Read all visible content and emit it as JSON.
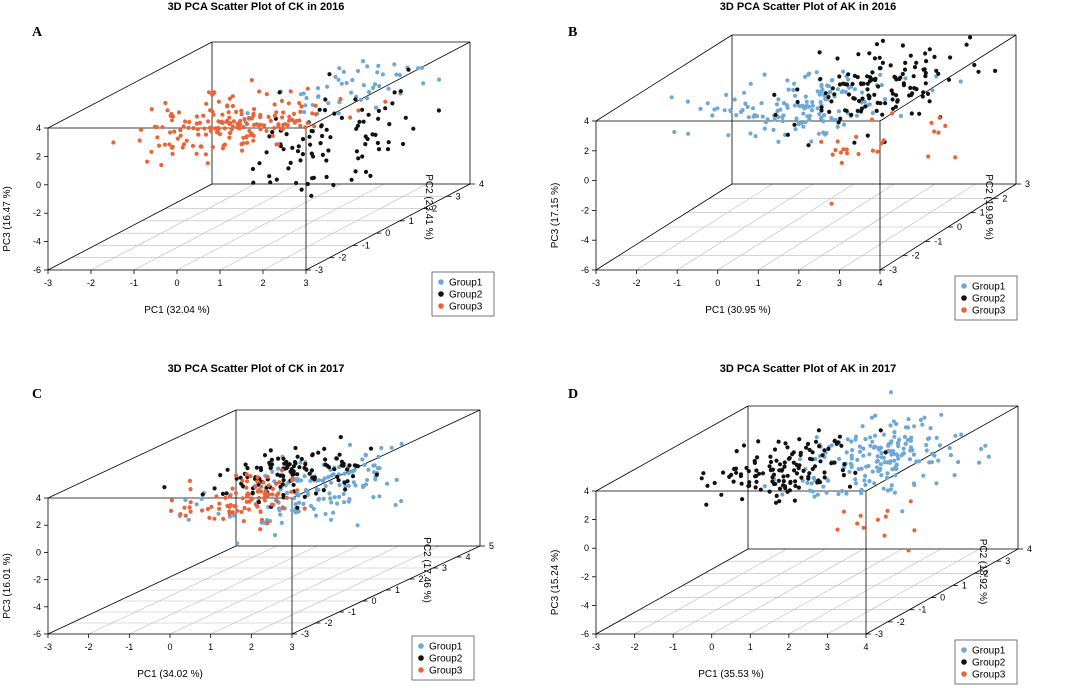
{
  "colors": {
    "Group1": "#6fa8d6",
    "Group2": "#111111",
    "Group3": "#e8653a",
    "box": "#000000",
    "grid": "#bbbbbb"
  },
  "chart_data": [
    {
      "panel_label": "A",
      "type": "scatter",
      "title": "3D PCA Scatter Plot of CK in 2016",
      "xlabel": "PC1 (32.04 %)",
      "ylabel": "PC2 (23.41 %)",
      "zlabel": "PC3 (16.47 %)",
      "x_ticks": [
        "-3",
        "-2",
        "-1",
        "0",
        "1",
        "2",
        "3"
      ],
      "y_ticks": [
        "-3",
        "-2",
        "-1",
        "0",
        "1",
        "2",
        "3",
        "4"
      ],
      "z_ticks": [
        "-6",
        "-4",
        "-2",
        "0",
        "2",
        "4"
      ],
      "xlim": [
        -3,
        3
      ],
      "ylim": [
        -3,
        4
      ],
      "zlim": [
        -6,
        4
      ],
      "legend": [
        "Group1",
        "Group2",
        "Group3"
      ],
      "legend_position": "bottom-right",
      "series": [
        {
          "name": "Group1",
          "center": [
            1.5,
            1.5,
            2.8
          ],
          "spread": [
            0.7,
            1.0,
            0.7
          ],
          "n": 50
        },
        {
          "name": "Group2",
          "center": [
            1.8,
            0.0,
            0.8
          ],
          "spread": [
            0.7,
            1.2,
            1.6
          ],
          "n": 90
        },
        {
          "name": "Group3",
          "center": [
            -0.3,
            0.2,
            1.5
          ],
          "spread": [
            0.9,
            0.9,
            0.8
          ],
          "n": 180
        }
      ]
    },
    {
      "panel_label": "B",
      "type": "scatter",
      "title": "3D PCA Scatter Plot of AK in 2016",
      "xlabel": "PC1 (30.95 %)",
      "ylabel": "PC2 (19.96 %)",
      "zlabel": "PC3 (17.15 %)",
      "x_ticks": [
        "-3",
        "-2",
        "-1",
        "0",
        "1",
        "2",
        "3",
        "4"
      ],
      "y_ticks": [
        "-3",
        "-2",
        "-1",
        "0",
        "1",
        "2",
        "3"
      ],
      "z_ticks": [
        "-6",
        "-4",
        "-2",
        "0",
        "2",
        "4"
      ],
      "xlim": [
        -3,
        4
      ],
      "ylim": [
        -3,
        3
      ],
      "zlim": [
        -6,
        4
      ],
      "legend": [
        "Group1",
        "Group2",
        "Group3"
      ],
      "legend_position": "bottom-right",
      "series": [
        {
          "name": "Group1",
          "center": [
            0.3,
            0.3,
            2.0
          ],
          "spread": [
            1.0,
            1.0,
            0.8
          ],
          "n": 150
        },
        {
          "name": "Group2",
          "center": [
            1.8,
            1.0,
            2.5
          ],
          "spread": [
            0.9,
            1.0,
            1.0
          ],
          "n": 130
        },
        {
          "name": "Group3",
          "center": [
            2.5,
            -0.5,
            0.3
          ],
          "spread": [
            0.9,
            1.0,
            0.8
          ],
          "n": 25
        }
      ]
    },
    {
      "panel_label": "C",
      "type": "scatter",
      "title": "3D PCA Scatter Plot of CK in 2017",
      "xlabel": "PC1 (34.02 %)",
      "ylabel": "PC2 (17.46 %)",
      "zlabel": "PC3 (16.01 %)",
      "x_ticks": [
        "-3",
        "-2",
        "-1",
        "0",
        "1",
        "2",
        "3"
      ],
      "y_ticks": [
        "-3",
        "-2",
        "-1",
        "0",
        "1",
        "2",
        "3",
        "4",
        "5"
      ],
      "z_ticks": [
        "-6",
        "-4",
        "-2",
        "0",
        "2",
        "4"
      ],
      "xlim": [
        -3,
        3
      ],
      "ylim": [
        -3,
        5
      ],
      "zlim": [
        -6,
        4
      ],
      "legend": [
        "Group1",
        "Group2",
        "Group3"
      ],
      "legend_position": "bottom-right",
      "series": [
        {
          "name": "Group1",
          "center": [
            1.2,
            0.8,
            1.5
          ],
          "spread": [
            0.8,
            1.3,
            1.0
          ],
          "n": 150
        },
        {
          "name": "Group2",
          "center": [
            0.2,
            1.5,
            2.2
          ],
          "spread": [
            0.8,
            1.0,
            0.8
          ],
          "n": 120
        },
        {
          "name": "Group3",
          "center": [
            -0.2,
            0.5,
            1.2
          ],
          "spread": [
            0.6,
            0.7,
            0.6
          ],
          "n": 90
        }
      ]
    },
    {
      "panel_label": "D",
      "type": "scatter",
      "title": "3D PCA Scatter Plot of AK in 2017",
      "xlabel": "PC1 (35.53 %)",
      "ylabel": "PC2 (18.92 %)",
      "zlabel": "PC3 (15.24 %)",
      "x_ticks": [
        "-3",
        "-2",
        "-1",
        "0",
        "1",
        "2",
        "3",
        "4"
      ],
      "y_ticks": [
        "-3",
        "-2",
        "-1",
        "0",
        "1",
        "2",
        "3",
        "4"
      ],
      "z_ticks": [
        "-6",
        "-4",
        "-2",
        "0",
        "2",
        "4"
      ],
      "xlim": [
        -3,
        4
      ],
      "ylim": [
        -3,
        4
      ],
      "zlim": [
        -6,
        4
      ],
      "legend": [
        "Group1",
        "Group2",
        "Group3"
      ],
      "legend_position": "bottom-right",
      "series": [
        {
          "name": "Group1",
          "center": [
            1.8,
            1.5,
            2.5
          ],
          "spread": [
            0.9,
            1.1,
            1.0
          ],
          "n": 190
        },
        {
          "name": "Group2",
          "center": [
            -0.4,
            0.8,
            2.3
          ],
          "spread": [
            0.8,
            0.9,
            0.8
          ],
          "n": 130
        },
        {
          "name": "Group3",
          "center": [
            2.5,
            -0.5,
            -0.5
          ],
          "spread": [
            0.9,
            1.0,
            0.7
          ],
          "n": 12
        }
      ]
    }
  ]
}
